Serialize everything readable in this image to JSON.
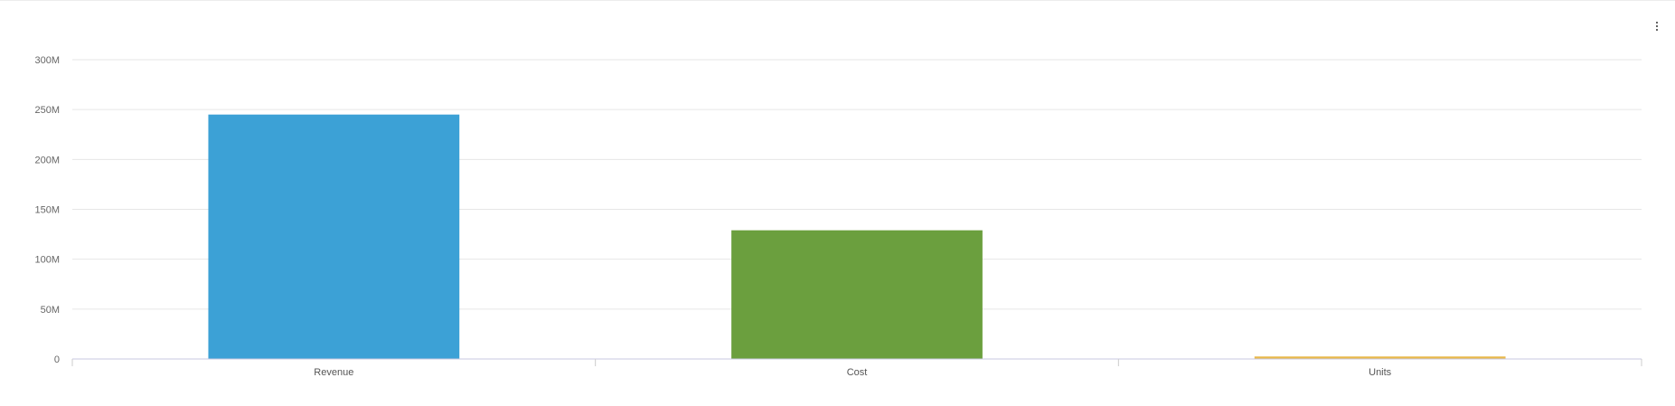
{
  "menu": {
    "icon": "more-vertical-icon"
  },
  "chart_data": {
    "type": "bar",
    "categories": [
      "Revenue",
      "Cost",
      "Units"
    ],
    "values": [
      245000000,
      129000000,
      2500000
    ],
    "colors": [
      "#3ca1d6",
      "#6b9f3e",
      "#e8b84a"
    ],
    "ylim": [
      0,
      300000000
    ],
    "yticks": [
      0,
      50000000,
      100000000,
      150000000,
      200000000,
      250000000,
      300000000
    ],
    "ytick_labels": [
      "0",
      "50M",
      "100M",
      "150M",
      "200M",
      "250M",
      "300M"
    ],
    "grid": true,
    "legend": "none"
  }
}
